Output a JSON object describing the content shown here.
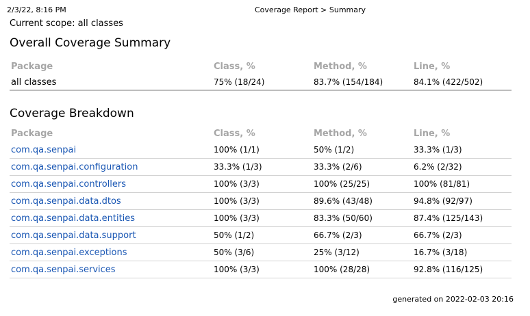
{
  "print_header": {
    "date": "2/3/22, 8:16 PM",
    "title": "Coverage Report > Summary"
  },
  "scope": "Current scope: all classes",
  "overall": {
    "heading": "Overall Coverage Summary",
    "columns": [
      "Package",
      "Class, %",
      "Method, %",
      "Line, %"
    ],
    "row": {
      "package": "all classes",
      "class_pct": "75% (18/24)",
      "method_pct": "83.7% (154/184)",
      "line_pct": "84.1% (422/502)"
    }
  },
  "breakdown": {
    "heading": "Coverage Breakdown",
    "columns": [
      "Package",
      "Class, %",
      "Method, %",
      "Line, %"
    ],
    "rows": [
      {
        "package": "com.qa.senpai",
        "class_pct": "100% (1/1)",
        "method_pct": "50% (1/2)",
        "line_pct": "33.3% (1/3)"
      },
      {
        "package": "com.qa.senpai.configuration",
        "class_pct": "33.3% (1/3)",
        "method_pct": "33.3% (2/6)",
        "line_pct": "6.2% (2/32)"
      },
      {
        "package": "com.qa.senpai.controllers",
        "class_pct": "100% (3/3)",
        "method_pct": "100% (25/25)",
        "line_pct": "100% (81/81)"
      },
      {
        "package": "com.qa.senpai.data.dtos",
        "class_pct": "100% (3/3)",
        "method_pct": "89.6% (43/48)",
        "line_pct": "94.8% (92/97)"
      },
      {
        "package": "com.qa.senpai.data.entities",
        "class_pct": "100% (3/3)",
        "method_pct": "83.3% (50/60)",
        "line_pct": "87.4% (125/143)"
      },
      {
        "package": "com.qa.senpai.data.support",
        "class_pct": "50% (1/2)",
        "method_pct": "66.7% (2/3)",
        "line_pct": "66.7% (2/3)"
      },
      {
        "package": "com.qa.senpai.exceptions",
        "class_pct": "50% (3/6)",
        "method_pct": "25% (3/12)",
        "line_pct": "16.7% (3/18)"
      },
      {
        "package": "com.qa.senpai.services",
        "class_pct": "100% (3/3)",
        "method_pct": "100% (28/28)",
        "line_pct": "92.8% (116/125)"
      }
    ]
  },
  "footer": "generated on 2022-02-03 20:16"
}
